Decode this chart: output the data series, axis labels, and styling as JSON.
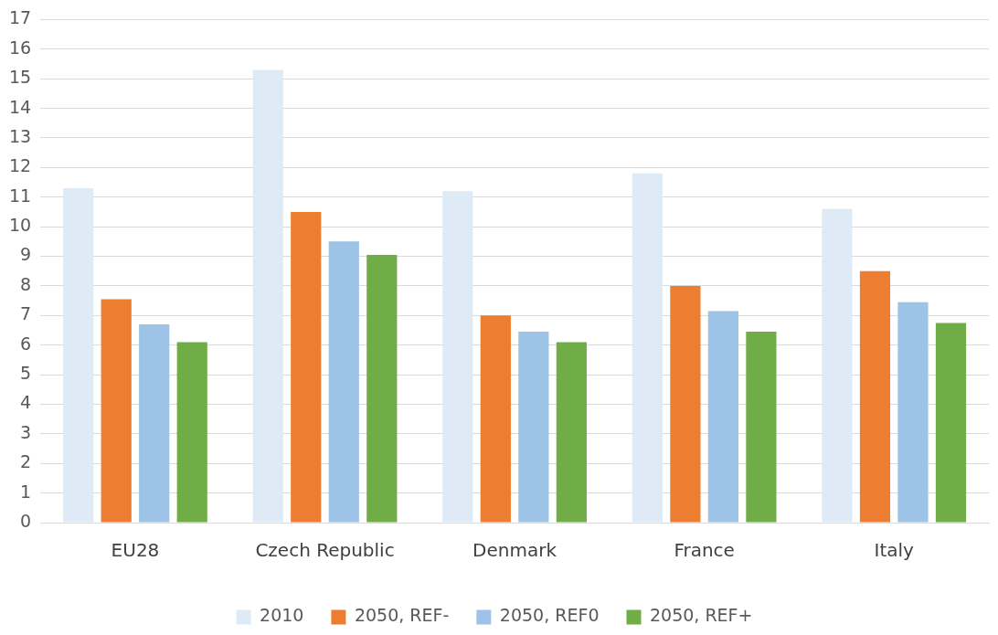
{
  "chart_data": {
    "type": "bar",
    "categories": [
      "EU28",
      "Czech Republic",
      "Denmark",
      "France",
      "Italy"
    ],
    "series": [
      {
        "name": "2010",
        "color": "#deebf7",
        "values": [
          11.3,
          15.3,
          11.2,
          11.8,
          10.6
        ]
      },
      {
        "name": "2050, REF-",
        "color": "#ed7d31",
        "values": [
          7.55,
          10.5,
          7.0,
          8.0,
          8.5
        ]
      },
      {
        "name": "2050, REF0",
        "color": "#9dc3e6",
        "values": [
          6.7,
          9.5,
          6.45,
          7.15,
          7.45
        ]
      },
      {
        "name": "2050, REF+",
        "color": "#70ad47",
        "values": [
          6.1,
          9.05,
          6.1,
          6.45,
          6.75
        ]
      }
    ],
    "ylim": [
      0,
      17
    ],
    "yticks": [
      0,
      1,
      2,
      3,
      4,
      5,
      6,
      7,
      8,
      9,
      10,
      11,
      12,
      13,
      14,
      15,
      16,
      17
    ],
    "grid": "y",
    "legend": "bottom"
  }
}
